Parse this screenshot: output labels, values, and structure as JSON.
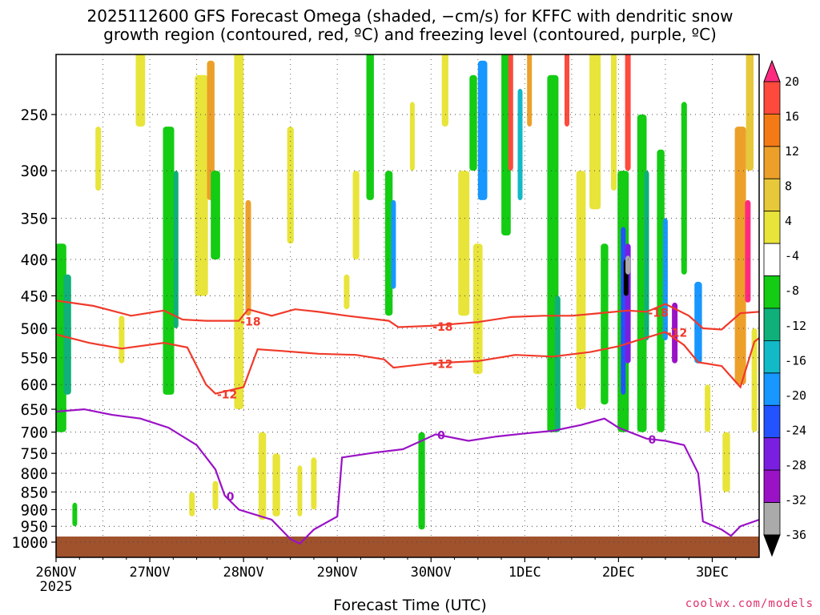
{
  "chart_data": {
    "type": "heatmap",
    "title_line1": "2025112600 GFS Forecast Omega (shaded, −cm/s) for KFFC with dendritic snow",
    "title_line2": "growth region (contoured, red, ºC) and freezing level (contoured, purple, ºC)",
    "xlabel": "Forecast Time (UTC)",
    "ylabel": "",
    "x_ticks": [
      "26NOV",
      "27NOV",
      "28NOV",
      "29NOV",
      "30NOV",
      "1DEC",
      "2DEC",
      "3DEC"
    ],
    "x_year": "2025",
    "x_range_days": [
      0,
      7.5
    ],
    "y_ticks": [
      250,
      300,
      350,
      400,
      450,
      500,
      550,
      600,
      650,
      700,
      750,
      800,
      850,
      900,
      950,
      1000
    ],
    "y_range_hpa": [
      200,
      1020
    ],
    "colorbar_labels": [
      "20",
      "16",
      "12",
      "8",
      "4",
      "-4",
      "-8",
      "-12",
      "-16",
      "-20",
      "-24",
      "-28",
      "-32",
      "-36"
    ],
    "colorbar_colors": [
      "#ff2a80",
      "#fd4a3c",
      "#f47a16",
      "#eca02a",
      "#e6c83a",
      "#e8e43a",
      "#ffffff",
      "#13cc13",
      "#0fb07a",
      "#12b9c7",
      "#1797ff",
      "#2352ff",
      "#7a1fe0",
      "#9a12c6",
      "#aaaaaa",
      "#000000"
    ],
    "contours": [
      {
        "name": "-18",
        "color": "#f03a2a",
        "label": "-18",
        "points": [
          [
            0,
            457
          ],
          [
            0.4,
            465
          ],
          [
            0.8,
            480
          ],
          [
            1.15,
            472
          ],
          [
            1.35,
            486
          ],
          [
            1.6,
            488
          ],
          [
            1.95,
            488
          ],
          [
            2.05,
            470
          ],
          [
            2.3,
            480
          ],
          [
            2.55,
            470
          ],
          [
            2.8,
            474
          ],
          [
            3.1,
            480
          ],
          [
            3.55,
            488
          ],
          [
            3.65,
            498
          ],
          [
            4.0,
            496
          ],
          [
            4.5,
            490
          ],
          [
            4.85,
            482
          ],
          [
            5.2,
            480
          ],
          [
            5.5,
            480
          ],
          [
            5.8,
            476
          ],
          [
            6.1,
            472
          ],
          [
            6.3,
            474
          ],
          [
            6.5,
            462
          ],
          [
            6.75,
            480
          ],
          [
            6.9,
            500
          ],
          [
            7.1,
            502
          ],
          [
            7.3,
            476
          ],
          [
            7.5,
            474
          ]
        ]
      },
      {
        "name": "-12",
        "color": "#f03a2a",
        "label": "-12",
        "points": [
          [
            0,
            510
          ],
          [
            0.35,
            524
          ],
          [
            0.7,
            534
          ],
          [
            1.15,
            524
          ],
          [
            1.4,
            532
          ],
          [
            1.6,
            600
          ],
          [
            1.7,
            618
          ],
          [
            2.0,
            605
          ],
          [
            2.15,
            535
          ],
          [
            2.4,
            538
          ],
          [
            2.8,
            543
          ],
          [
            3.2,
            545
          ],
          [
            3.5,
            553
          ],
          [
            3.6,
            568
          ],
          [
            4.0,
            560
          ],
          [
            4.5,
            556
          ],
          [
            4.9,
            545
          ],
          [
            5.3,
            548
          ],
          [
            5.7,
            540
          ],
          [
            6.0,
            530
          ],
          [
            6.2,
            520
          ],
          [
            6.5,
            506
          ],
          [
            6.7,
            528
          ],
          [
            6.85,
            558
          ],
          [
            7.1,
            565
          ],
          [
            7.3,
            605
          ],
          [
            7.45,
            522
          ],
          [
            7.5,
            516
          ]
        ]
      },
      {
        "name": "0",
        "color": "#9a12c6",
        "label": "0",
        "points": [
          [
            0,
            655
          ],
          [
            0.3,
            650
          ],
          [
            0.6,
            662
          ],
          [
            0.9,
            670
          ],
          [
            1.2,
            690
          ],
          [
            1.5,
            730
          ],
          [
            1.7,
            790
          ],
          [
            1.8,
            860
          ],
          [
            1.95,
            900
          ],
          [
            2.3,
            930
          ],
          [
            2.5,
            990
          ],
          [
            2.6,
            1005
          ],
          [
            2.75,
            960
          ],
          [
            3.0,
            920
          ],
          [
            3.05,
            760
          ],
          [
            3.4,
            748
          ],
          [
            3.7,
            740
          ],
          [
            4.05,
            705
          ],
          [
            4.4,
            720
          ],
          [
            4.7,
            710
          ],
          [
            5.0,
            703
          ],
          [
            5.3,
            697
          ],
          [
            5.6,
            684
          ],
          [
            5.85,
            670
          ],
          [
            6.0,
            690
          ],
          [
            6.3,
            715
          ],
          [
            6.5,
            720
          ],
          [
            6.7,
            730
          ],
          [
            6.85,
            800
          ],
          [
            6.9,
            935
          ],
          [
            7.1,
            960
          ],
          [
            7.2,
            980
          ],
          [
            7.3,
            950
          ],
          [
            7.5,
            930
          ]
        ]
      }
    ]
  },
  "credit": "coolwx.com/models"
}
